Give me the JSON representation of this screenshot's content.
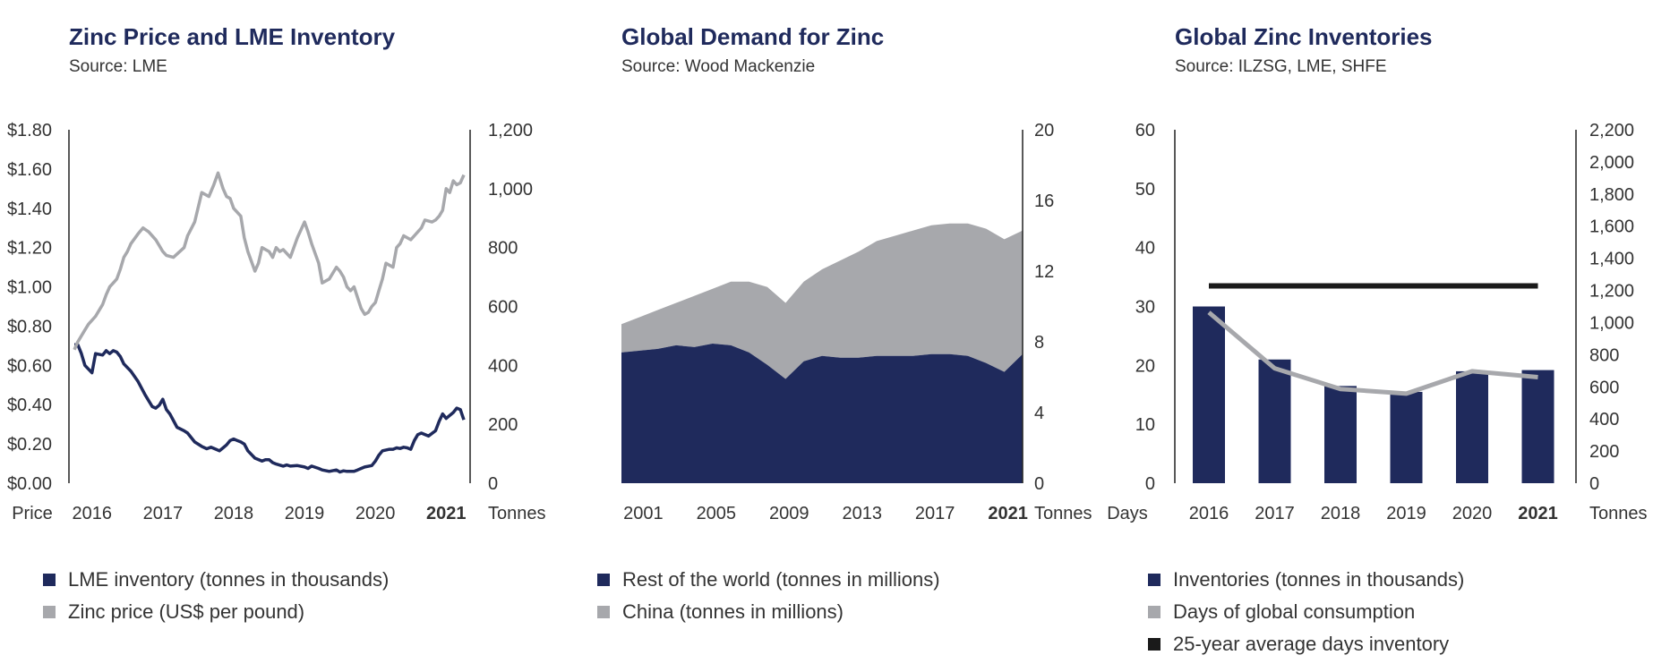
{
  "colors": {
    "navy": "#1f2a5c",
    "gray": "#a7a8ac",
    "black": "#1a1a1a",
    "axis": "#222222"
  },
  "chart_data": [
    {
      "type": "line",
      "title": "Zinc Price and LME Inventory",
      "subtitle": "Source: LME",
      "xlabel": "",
      "ylabel": "Price",
      "y2label": "Tonnes",
      "x_ticks": [
        "2016",
        "2017",
        "2018",
        "2019",
        "2020",
        "2021"
      ],
      "x_bold_tick": "2021",
      "ylim": [
        0,
        1.8
      ],
      "y_ticks": [
        "$0.00",
        "$0.20",
        "$0.40",
        "$0.60",
        "$0.80",
        "$1.00",
        "$1.20",
        "$1.40",
        "$1.60",
        "$1.80"
      ],
      "y2lim": [
        0,
        1200
      ],
      "y2_ticks": [
        "0",
        "200",
        "400",
        "600",
        "800",
        "1,000",
        "1,200"
      ],
      "xlim": [
        2015.7,
        2021.3
      ],
      "series": [
        {
          "name": "LME inventory (tonnes in thousands)",
          "axis": "y2",
          "color": "navy",
          "x": [
            2015.75,
            2015.8,
            2015.85,
            2015.9,
            2016.0,
            2016.05,
            2016.15,
            2016.2,
            2016.25,
            2016.3,
            2016.35,
            2016.4,
            2016.45,
            2016.55,
            2016.65,
            2016.75,
            2016.85,
            2016.9,
            2016.95,
            2017.0,
            2017.05,
            2017.1,
            2017.2,
            2017.3,
            2017.35,
            2017.45,
            2017.55,
            2017.62,
            2017.68,
            2017.75,
            2017.8,
            2017.85,
            2017.9,
            2017.95,
            2018.0,
            2018.05,
            2018.1,
            2018.15,
            2018.2,
            2018.3,
            2018.4,
            2018.45,
            2018.5,
            2018.55,
            2018.6,
            2018.7,
            2018.75,
            2018.8,
            2018.9,
            2019.0,
            2019.05,
            2019.1,
            2019.2,
            2019.25,
            2019.35,
            2019.45,
            2019.5,
            2019.55,
            2019.6,
            2019.7,
            2019.75,
            2019.8,
            2019.85,
            2019.95,
            2020.0,
            2020.05,
            2020.1,
            2020.2,
            2020.25,
            2020.3,
            2020.35,
            2020.4,
            2020.45,
            2020.5,
            2020.55,
            2020.6,
            2020.65,
            2020.75,
            2020.85,
            2020.9,
            2020.95,
            2021.0,
            2021.05,
            2021.1,
            2021.15,
            2021.2,
            2021.25
          ],
          "values": [
            470,
            470,
            440,
            400,
            375,
            440,
            435,
            450,
            440,
            450,
            445,
            430,
            405,
            380,
            345,
            300,
            260,
            255,
            265,
            285,
            250,
            235,
            190,
            178,
            170,
            140,
            125,
            117,
            122,
            115,
            110,
            120,
            130,
            145,
            150,
            145,
            140,
            133,
            110,
            85,
            75,
            80,
            80,
            70,
            65,
            58,
            62,
            58,
            60,
            55,
            50,
            58,
            50,
            45,
            40,
            45,
            38,
            42,
            40,
            40,
            45,
            50,
            55,
            60,
            75,
            95,
            110,
            115,
            115,
            120,
            118,
            122,
            120,
            115,
            145,
            165,
            170,
            160,
            178,
            210,
            235,
            220,
            230,
            240,
            255,
            250,
            215
          ]
        },
        {
          "name": "Zinc price (US$ per pound)",
          "axis": "y",
          "color": "gray",
          "x": [
            2015.75,
            2015.8,
            2015.9,
            2015.95,
            2016.05,
            2016.15,
            2016.2,
            2016.25,
            2016.3,
            2016.35,
            2016.4,
            2016.45,
            2016.5,
            2016.55,
            2016.65,
            2016.72,
            2016.8,
            2016.9,
            2016.95,
            2017.0,
            2017.05,
            2017.15,
            2017.3,
            2017.35,
            2017.45,
            2017.55,
            2017.65,
            2017.72,
            2017.78,
            2017.85,
            2017.9,
            2017.95,
            2018.0,
            2018.05,
            2018.1,
            2018.15,
            2018.2,
            2018.3,
            2018.35,
            2018.4,
            2018.5,
            2018.55,
            2018.6,
            2018.65,
            2018.7,
            2018.8,
            2018.9,
            2019.0,
            2019.05,
            2019.1,
            2019.2,
            2019.25,
            2019.35,
            2019.45,
            2019.5,
            2019.55,
            2019.6,
            2019.65,
            2019.7,
            2019.8,
            2019.85,
            2019.9,
            2019.95,
            2020.0,
            2020.05,
            2020.1,
            2020.15,
            2020.25,
            2020.3,
            2020.35,
            2020.4,
            2020.5,
            2020.55,
            2020.6,
            2020.65,
            2020.7,
            2020.8,
            2020.85,
            2020.9,
            2020.95,
            2021.0,
            2021.05,
            2021.1,
            2021.15,
            2021.2,
            2021.25
          ],
          "values": [
            0.68,
            0.72,
            0.78,
            0.81,
            0.85,
            0.91,
            0.96,
            1.0,
            1.02,
            1.04,
            1.09,
            1.15,
            1.18,
            1.22,
            1.27,
            1.3,
            1.28,
            1.24,
            1.21,
            1.18,
            1.16,
            1.15,
            1.2,
            1.26,
            1.33,
            1.48,
            1.46,
            1.52,
            1.58,
            1.5,
            1.46,
            1.45,
            1.4,
            1.38,
            1.36,
            1.25,
            1.18,
            1.08,
            1.12,
            1.2,
            1.18,
            1.15,
            1.2,
            1.18,
            1.19,
            1.15,
            1.25,
            1.33,
            1.28,
            1.22,
            1.12,
            1.02,
            1.04,
            1.1,
            1.08,
            1.05,
            1.0,
            0.98,
            1.0,
            0.89,
            0.86,
            0.87,
            0.9,
            0.92,
            0.98,
            1.04,
            1.12,
            1.1,
            1.2,
            1.22,
            1.26,
            1.24,
            1.26,
            1.28,
            1.3,
            1.34,
            1.33,
            1.34,
            1.36,
            1.39,
            1.5,
            1.48,
            1.54,
            1.52,
            1.53,
            1.57
          ]
        }
      ],
      "legend": [
        "LME inventory (tonnes in thousands)",
        "Zinc price (US$ per pound)"
      ]
    },
    {
      "type": "area",
      "title": "Global Demand for Zinc",
      "subtitle": "Source: Wood Mackenzie",
      "y2label": "Tonnes",
      "x_ticks": [
        "2001",
        "2005",
        "2009",
        "2013",
        "2017",
        "2021"
      ],
      "x_bold_tick": "2021",
      "xlim": [
        2000,
        2022
      ],
      "y2lim": [
        0,
        20
      ],
      "y2_ticks": [
        "0",
        "4",
        "8",
        "12",
        "16",
        "20"
      ],
      "x": [
        2000,
        2001,
        2002,
        2003,
        2004,
        2005,
        2006,
        2007,
        2008,
        2009,
        2010,
        2011,
        2012,
        2013,
        2014,
        2015,
        2016,
        2017,
        2018,
        2019,
        2020,
        2021,
        2022
      ],
      "series": [
        {
          "name": "Rest of the world (tonnes in millions)",
          "color": "navy",
          "values": [
            7.4,
            7.5,
            7.6,
            7.8,
            7.7,
            7.9,
            7.8,
            7.4,
            6.7,
            5.9,
            6.9,
            7.2,
            7.1,
            7.1,
            7.2,
            7.2,
            7.2,
            7.3,
            7.3,
            7.2,
            6.8,
            6.3,
            7.3
          ]
        },
        {
          "name": "China (tonnes in millions)",
          "color": "gray",
          "values": [
            1.6,
            1.9,
            2.2,
            2.4,
            2.9,
            3.1,
            3.6,
            4.0,
            4.4,
            4.3,
            4.5,
            4.9,
            5.5,
            6.0,
            6.5,
            6.8,
            7.1,
            7.3,
            7.4,
            7.5,
            7.6,
            7.5,
            7.0
          ]
        }
      ],
      "legend": [
        "Rest of the world (tonnes in millions)",
        "China (tonnes in millions)"
      ]
    },
    {
      "type": "bar",
      "title": "Global Zinc Inventories",
      "subtitle": "Source: ILZSG, LME, SHFE",
      "ylabel": "Days",
      "y2label": "Tonnes",
      "categories": [
        "2016",
        "2017",
        "2018",
        "2019",
        "2020",
        "2021"
      ],
      "x_bold_tick": "2021",
      "ylim": [
        0,
        60
      ],
      "y_ticks": [
        "0",
        "10",
        "20",
        "30",
        "40",
        "50",
        "60"
      ],
      "y2lim": [
        0,
        2200
      ],
      "y2_ticks": [
        "0",
        "200",
        "400",
        "600",
        "800",
        "1,000",
        "1,200",
        "1,400",
        "1,600",
        "1,800",
        "2,000",
        "2,200"
      ],
      "series": [
        {
          "name": "Inventories (tonnes in thousands)",
          "axis": "y",
          "color": "navy",
          "values": [
            30,
            21,
            16.5,
            15.5,
            19,
            19.2
          ]
        },
        {
          "name": "Days of global consumption",
          "axis": "y",
          "color": "gray",
          "type": "line",
          "values": [
            29,
            19.5,
            16,
            15.2,
            19,
            18
          ]
        },
        {
          "name": "25-year average days inventory",
          "axis": "y",
          "color": "black",
          "type": "line",
          "values": [
            33.5,
            33.5,
            33.5,
            33.5,
            33.5,
            33.5
          ]
        }
      ],
      "legend": [
        "Inventories (tonnes in thousands)",
        "Days of global consumption",
        "25-year average days inventory"
      ]
    }
  ]
}
